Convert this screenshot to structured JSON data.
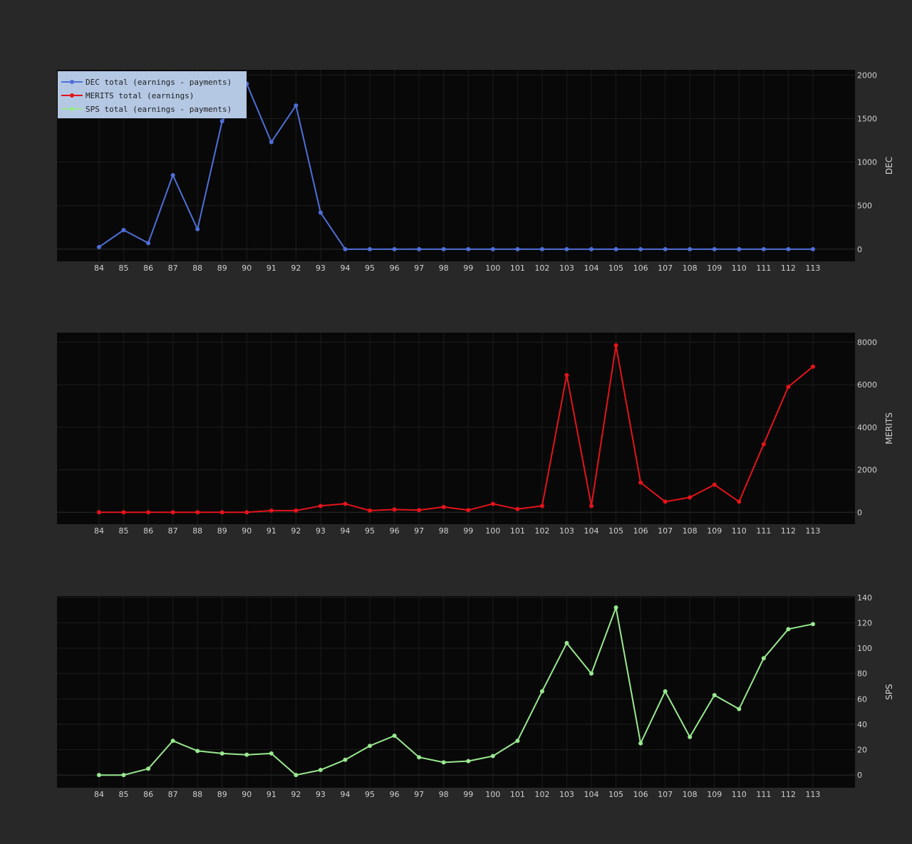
{
  "chart_data": [
    {
      "type": "line",
      "ylabel": "DEC",
      "x": [
        84,
        85,
        86,
        87,
        88,
        89,
        90,
        91,
        92,
        93,
        94,
        95,
        96,
        97,
        98,
        99,
        100,
        101,
        102,
        103,
        104,
        105,
        106,
        107,
        108,
        109,
        110,
        111,
        112,
        113
      ],
      "ylim": [
        -140,
        2060
      ],
      "yticks": [
        0,
        500,
        1000,
        1500,
        2000
      ],
      "series": [
        {
          "name": "DEC total (earnings - payments)",
          "color": "#4f6fd8",
          "values": [
            25,
            220,
            70,
            850,
            230,
            1470,
            1900,
            1230,
            1650,
            420,
            0,
            0,
            0,
            0,
            0,
            0,
            0,
            0,
            0,
            0,
            0,
            0,
            0,
            0,
            0,
            0,
            0,
            0,
            0,
            0
          ]
        }
      ]
    },
    {
      "type": "line",
      "ylabel": "MERITS",
      "x": [
        84,
        85,
        86,
        87,
        88,
        89,
        90,
        91,
        92,
        93,
        94,
        95,
        96,
        97,
        98,
        99,
        100,
        101,
        102,
        103,
        104,
        105,
        106,
        107,
        108,
        109,
        110,
        111,
        112,
        113
      ],
      "ylim": [
        -560,
        8450
      ],
      "yticks": [
        0,
        2000,
        4000,
        6000,
        8000
      ],
      "series": [
        {
          "name": "MERITS  total (earnings)",
          "color": "#e3141b",
          "values": [
            0,
            0,
            0,
            0,
            0,
            0,
            0,
            80,
            80,
            300,
            400,
            80,
            130,
            100,
            250,
            100,
            400,
            150,
            300,
            6450,
            300,
            7850,
            1400,
            500,
            700,
            1300,
            500,
            3200,
            5900,
            6850
          ]
        }
      ]
    },
    {
      "type": "line",
      "ylabel": "SPS",
      "x": [
        84,
        85,
        86,
        87,
        88,
        89,
        90,
        91,
        92,
        93,
        94,
        95,
        96,
        97,
        98,
        99,
        100,
        101,
        102,
        103,
        104,
        105,
        106,
        107,
        108,
        109,
        110,
        111,
        112,
        113
      ],
      "ylim": [
        -10,
        141
      ],
      "yticks": [
        0,
        20,
        40,
        60,
        80,
        100,
        120,
        140
      ],
      "series": [
        {
          "name": "SPS total (earnings - payments)",
          "color": "#98e98f",
          "values": [
            0,
            0,
            5,
            27,
            19,
            17,
            16,
            17,
            0,
            4,
            12,
            23,
            31,
            14,
            10,
            11,
            15,
            27,
            66,
            104,
            80,
            132,
            25,
            66,
            30,
            63,
            52,
            92,
            115,
            119
          ]
        }
      ]
    }
  ],
  "legend": {
    "items": [
      {
        "label": "DEC total (earnings - payments)",
        "color": "#4f6fd8"
      },
      {
        "label": "MERITS  total (earnings)",
        "color": "#e3141b"
      },
      {
        "label": "SPS total (earnings - payments)",
        "color": "#98e98f"
      }
    ]
  }
}
